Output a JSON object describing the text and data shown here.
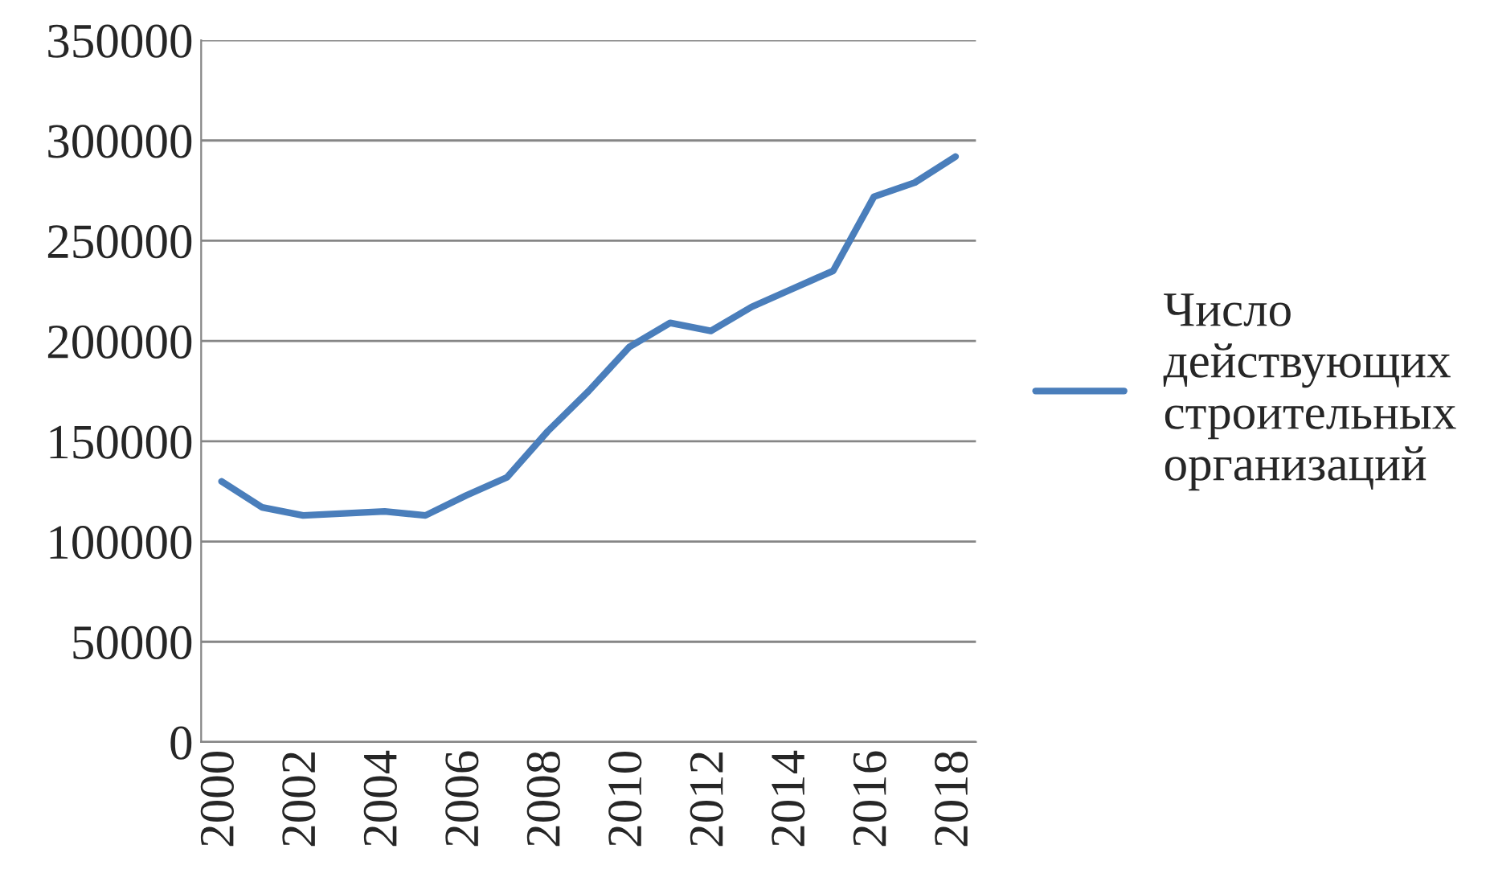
{
  "chart_data": {
    "type": "line",
    "categories": [
      "2000",
      null,
      "2002",
      null,
      "2004",
      null,
      "2006",
      null,
      "2008",
      null,
      "2010",
      null,
      "2012",
      null,
      "2014",
      null,
      "2016",
      null,
      "2018"
    ],
    "series": [
      {
        "name": "Число действующих строительных организаций",
        "color": "#4a7ebb",
        "values": [
          130000,
          117000,
          113000,
          114000,
          115000,
          113000,
          123000,
          132000,
          155000,
          175000,
          197000,
          209000,
          205000,
          217000,
          226000,
          235000,
          272000,
          279000,
          292000
        ]
      }
    ],
    "ylim": [
      0,
      350000
    ],
    "yticks": [
      0,
      50000,
      100000,
      150000,
      200000,
      250000,
      300000,
      350000
    ],
    "grid": "y",
    "legend": "right",
    "marker": "none",
    "line_style": "solid"
  }
}
